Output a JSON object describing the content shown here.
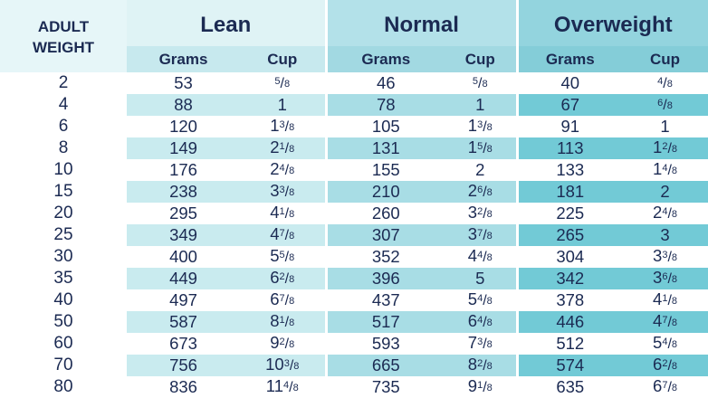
{
  "header": {
    "adult_weight": [
      "ADULT",
      "WEIGHT"
    ],
    "groups": [
      "Lean",
      "Normal",
      "Overweight"
    ],
    "subcols": [
      "Grams",
      "Cup"
    ]
  },
  "colors": {
    "text": "#1b2a52",
    "header_adult": "#e6f6f8",
    "lean_header": "#dff3f5",
    "lean_subheader": "#c7e9ee",
    "normal_header": "#b3e1e9",
    "normal_subheader": "#a2d9e2",
    "over_header": "#93d4de",
    "over_subheader": "#84cdd8",
    "lean_row": "#c9ebef",
    "normal_row": "#a8dde5",
    "over_row": "#72cad6"
  },
  "rows": [
    {
      "weight": "2",
      "lean_g": "53",
      "lean_c": [
        null,
        "5",
        "8"
      ],
      "normal_g": "46",
      "normal_c": [
        null,
        "5",
        "8"
      ],
      "over_g": "40",
      "over_c": [
        null,
        "4",
        "8"
      ]
    },
    {
      "weight": "4",
      "lean_g": "88",
      "lean_c": [
        "1",
        null,
        null
      ],
      "normal_g": "78",
      "normal_c": [
        "1",
        null,
        null
      ],
      "over_g": "67",
      "over_c": [
        null,
        "6",
        "8"
      ]
    },
    {
      "weight": "6",
      "lean_g": "120",
      "lean_c": [
        "1",
        "3",
        "8"
      ],
      "normal_g": "105",
      "normal_c": [
        "1",
        "3",
        "8"
      ],
      "over_g": "91",
      "over_c": [
        "1",
        null,
        null
      ]
    },
    {
      "weight": "8",
      "lean_g": "149",
      "lean_c": [
        "2",
        "1",
        "8"
      ],
      "normal_g": "131",
      "normal_c": [
        "1",
        "5",
        "8"
      ],
      "over_g": "113",
      "over_c": [
        "1",
        "2",
        "8"
      ]
    },
    {
      "weight": "10",
      "lean_g": "176",
      "lean_c": [
        "2",
        "4",
        "8"
      ],
      "normal_g": "155",
      "normal_c": [
        "2",
        null,
        null
      ],
      "over_g": "133",
      "over_c": [
        "1",
        "4",
        "8"
      ]
    },
    {
      "weight": "15",
      "lean_g": "238",
      "lean_c": [
        "3",
        "3",
        "8"
      ],
      "normal_g": "210",
      "normal_c": [
        "2",
        "6",
        "8"
      ],
      "over_g": "181",
      "over_c": [
        "2",
        null,
        null
      ]
    },
    {
      "weight": "20",
      "lean_g": "295",
      "lean_c": [
        "4",
        "1",
        "8"
      ],
      "normal_g": "260",
      "normal_c": [
        "3",
        "2",
        "8"
      ],
      "over_g": "225",
      "over_c": [
        "2",
        "4",
        "8"
      ]
    },
    {
      "weight": "25",
      "lean_g": "349",
      "lean_c": [
        "4",
        "7",
        "8"
      ],
      "normal_g": "307",
      "normal_c": [
        "3",
        "7",
        "8"
      ],
      "over_g": "265",
      "over_c": [
        "3",
        null,
        null
      ]
    },
    {
      "weight": "30",
      "lean_g": "400",
      "lean_c": [
        "5",
        "5",
        "8"
      ],
      "normal_g": "352",
      "normal_c": [
        "4",
        "4",
        "8"
      ],
      "over_g": "304",
      "over_c": [
        "3",
        "3",
        "8"
      ]
    },
    {
      "weight": "35",
      "lean_g": "449",
      "lean_c": [
        "6",
        "2",
        "8"
      ],
      "normal_g": "396",
      "normal_c": [
        "5",
        null,
        null
      ],
      "over_g": "342",
      "over_c": [
        "3",
        "6",
        "8"
      ]
    },
    {
      "weight": "40",
      "lean_g": "497",
      "lean_c": [
        "6",
        "7",
        "8"
      ],
      "normal_g": "437",
      "normal_c": [
        "5",
        "4",
        "8"
      ],
      "over_g": "378",
      "over_c": [
        "4",
        "1",
        "8"
      ]
    },
    {
      "weight": "50",
      "lean_g": "587",
      "lean_c": [
        "8",
        "1",
        "8"
      ],
      "normal_g": "517",
      "normal_c": [
        "6",
        "4",
        "8"
      ],
      "over_g": "446",
      "over_c": [
        "4",
        "7",
        "8"
      ]
    },
    {
      "weight": "60",
      "lean_g": "673",
      "lean_c": [
        "9",
        "2",
        "8"
      ],
      "normal_g": "593",
      "normal_c": [
        "7",
        "3",
        "8"
      ],
      "over_g": "512",
      "over_c": [
        "5",
        "4",
        "8"
      ]
    },
    {
      "weight": "70",
      "lean_g": "756",
      "lean_c": [
        "10",
        "3",
        "8"
      ],
      "normal_g": "665",
      "normal_c": [
        "8",
        "2",
        "8"
      ],
      "over_g": "574",
      "over_c": [
        "6",
        "2",
        "8"
      ]
    },
    {
      "weight": "80",
      "lean_g": "836",
      "lean_c": [
        "11",
        "4",
        "8"
      ],
      "normal_g": "735",
      "normal_c": [
        "9",
        "1",
        "8"
      ],
      "over_g": "635",
      "over_c": [
        "6",
        "7",
        "8"
      ]
    }
  ]
}
